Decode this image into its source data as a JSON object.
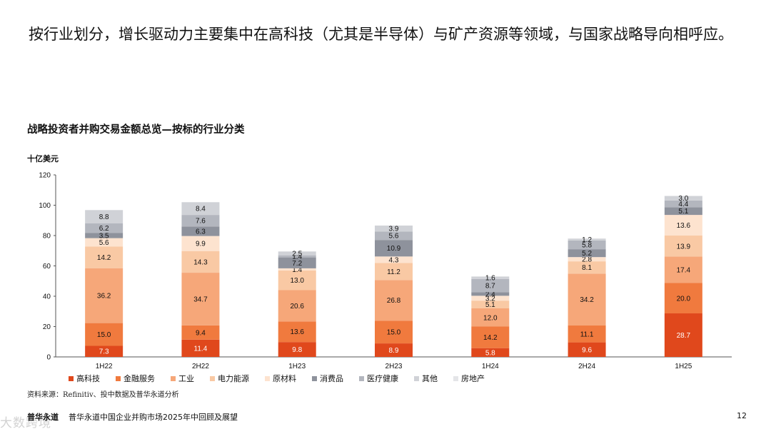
{
  "headline": "按行业划分，增长驱动力主要集中在高科技（尤其是半导体）与矿产资源等领域，与国家战略导向相呼应。",
  "chart_title": "战略投资者并购交易金额总览—按标的行业分类",
  "unit_label": "十亿美元",
  "source": "资料来源：Refinitiv、投中数据及普华永道分析",
  "footer": {
    "logo": "普华永道",
    "title": "普华永道中国企业并购市场2025年中回顾及展望",
    "page": "12"
  },
  "watermark": "大数跨境",
  "chart_data": {
    "type": "bar",
    "stacked": true,
    "title": "战略投资者并购交易金额总览—按标的行业分类",
    "ylabel": "十亿美元",
    "ylim": [
      0,
      120
    ],
    "yticks": [
      0,
      20,
      40,
      60,
      80,
      100,
      120
    ],
    "categories": [
      "1H22",
      "2H22",
      "1H23",
      "2H23",
      "1H24",
      "2H24",
      "1H25"
    ],
    "series": [
      {
        "name": "高科技",
        "color": "#e0481c",
        "label_color": "#ffffff",
        "values": [
          7.3,
          11.4,
          9.8,
          8.9,
          5.8,
          9.6,
          28.7
        ]
      },
      {
        "name": "金融服务",
        "color": "#f07a3e",
        "label_color": "#111111",
        "values": [
          15.0,
          9.4,
          13.6,
          15.0,
          14.2,
          11.1,
          20.0
        ]
      },
      {
        "name": "工业",
        "color": "#f6a779",
        "label_color": "#111111",
        "values": [
          36.2,
          34.7,
          20.6,
          26.8,
          12.0,
          34.2,
          17.4
        ]
      },
      {
        "name": "电力能源",
        "color": "#f9c9a4",
        "label_color": "#111111",
        "values": [
          14.2,
          14.3,
          13.0,
          11.2,
          5.1,
          8.1,
          13.9
        ]
      },
      {
        "name": "原材料",
        "color": "#fde3cf",
        "label_color": "#111111",
        "values": [
          5.6,
          9.9,
          1.4,
          4.3,
          3.2,
          2.8,
          13.6
        ]
      },
      {
        "name": "消费品",
        "color": "#8e929c",
        "label_color": "#111111",
        "values": [
          3.5,
          6.3,
          7.2,
          10.9,
          2.4,
          5.2,
          5.1
        ]
      },
      {
        "name": "医疗健康",
        "color": "#b3b6be",
        "label_color": "#111111",
        "values": [
          6.2,
          7.6,
          1.4,
          5.6,
          8.7,
          5.8,
          4.4
        ]
      },
      {
        "name": "其他",
        "color": "#d0d2d7",
        "label_color": "#111111",
        "values": [
          8.8,
          8.4,
          2.5,
          3.9,
          1.6,
          1.2,
          3.0
        ]
      },
      {
        "name": "房地产",
        "color": "#e4e5e8",
        "label_color": "#111111",
        "values": [
          0.0,
          0.0,
          0.0,
          0.0,
          0.0,
          0.0,
          0.0
        ]
      }
    ],
    "legend": "bottom"
  }
}
